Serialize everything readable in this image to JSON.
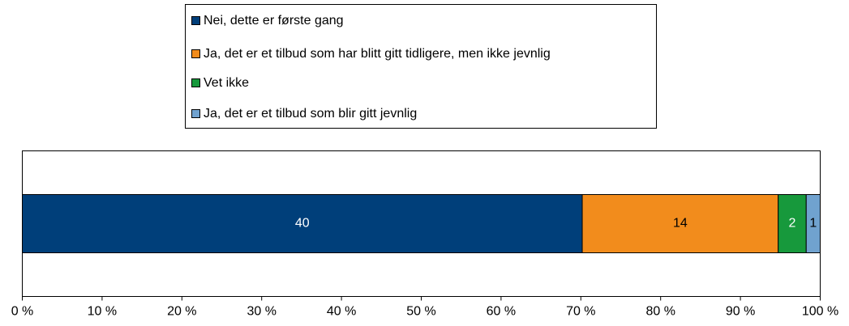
{
  "chart_data": {
    "type": "bar",
    "orientation": "horizontal",
    "stacked": "percent",
    "series": [
      {
        "name": "Nei, dette er første gang",
        "color": "#003f7a",
        "values": [
          40
        ]
      },
      {
        "name": "Ja, det er et tilbud som har blitt gitt tidligere, men ikke jevnlig",
        "color": "#f28c1c",
        "values": [
          14
        ]
      },
      {
        "name": "Vet ikke",
        "color": "#17993c",
        "values": [
          2
        ]
      },
      {
        "name": "Ja, det er et tilbud som blir gitt jevnlig",
        "color": "#70a2cf",
        "values": [
          1
        ]
      }
    ],
    "xlim": [
      0,
      100
    ],
    "xticks": [
      {
        "value": 0,
        "label": "0 %"
      },
      {
        "value": 10,
        "label": "10 %"
      },
      {
        "value": 20,
        "label": "20 %"
      },
      {
        "value": 30,
        "label": "30 %"
      },
      {
        "value": 40,
        "label": "40 %"
      },
      {
        "value": 50,
        "label": "50 %"
      },
      {
        "value": 60,
        "label": "60 %"
      },
      {
        "value": 70,
        "label": "70 %"
      },
      {
        "value": 80,
        "label": "80 %"
      },
      {
        "value": 90,
        "label": "90 %"
      },
      {
        "value": 100,
        "label": "100 %"
      }
    ],
    "legend": "top"
  }
}
